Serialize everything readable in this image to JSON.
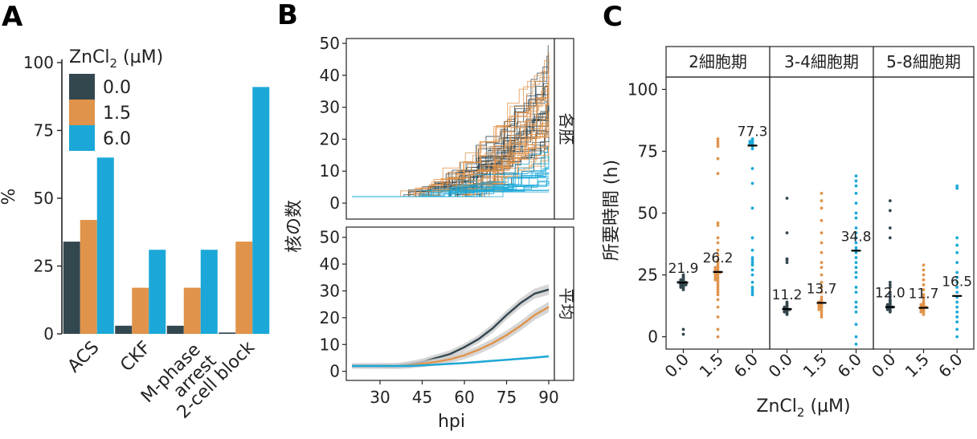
{
  "colors": {
    "c0": "#33474f",
    "c15": "#e0934a",
    "c6": "#1ba8d8",
    "axis": "#222222",
    "band": "#cccccc"
  },
  "legend": {
    "title_prefix": "ZnCl",
    "title_sub": "2",
    "title_suffix": " (µM)",
    "entries": [
      "0.0",
      "1.5",
      "6.0"
    ]
  },
  "chart_data": [
    {
      "panel": "A",
      "type": "bar",
      "title": "",
      "ylabel": "%",
      "xlabel": "",
      "ylim": [
        0,
        100
      ],
      "yticks": [
        0,
        25,
        50,
        75,
        100
      ],
      "categories": [
        "ACS",
        "CKF",
        "M-phase arrest",
        "2-cell block"
      ],
      "category_lines": [
        [
          "ACS"
        ],
        [
          "CKF"
        ],
        [
          "M-phase",
          "arrest"
        ],
        [
          "2-cell block"
        ]
      ],
      "series": [
        {
          "name": "0.0",
          "values": [
            34,
            3,
            3,
            0.5
          ]
        },
        {
          "name": "1.5",
          "values": [
            42,
            17,
            17,
            34
          ]
        },
        {
          "name": "6.0",
          "values": [
            65,
            31,
            31,
            91
          ]
        }
      ]
    },
    {
      "panel": "B",
      "type": "line",
      "xlabel": "hpi",
      "ylabel": "核の数",
      "xlim": [
        18,
        92
      ],
      "xticks": [
        30,
        45,
        60,
        75,
        90
      ],
      "facets": [
        {
          "strip": "各胚",
          "ylim": [
            -3,
            50
          ],
          "yticks": [
            0,
            10,
            20,
            30,
            40,
            50
          ],
          "kind": "individual embryo traces"
        },
        {
          "strip": "平均",
          "ylim": [
            -1,
            52
          ],
          "yticks": [
            0,
            10,
            20,
            30,
            40,
            50
          ],
          "kind": "mean with ribbon"
        }
      ],
      "mean_series": [
        {
          "name": "0.0",
          "x": [
            20,
            36,
            40,
            45,
            50,
            55,
            60,
            65,
            70,
            75,
            80,
            85,
            90
          ],
          "y": [
            2,
            2,
            2.5,
            3.5,
            5,
            6.5,
            9,
            12,
            16,
            21,
            25.5,
            29,
            30.5
          ]
        },
        {
          "name": "1.5",
          "x": [
            20,
            36,
            40,
            45,
            50,
            55,
            60,
            65,
            70,
            75,
            80,
            85,
            90
          ],
          "y": [
            2,
            2,
            2.2,
            2.8,
            3.5,
            4.5,
            6,
            8,
            10.5,
            13.5,
            17,
            21,
            24
          ]
        },
        {
          "name": "6.0",
          "x": [
            20,
            36,
            40,
            45,
            50,
            55,
            60,
            65,
            70,
            75,
            80,
            85,
            90
          ],
          "y": [
            2,
            2,
            2,
            2.2,
            2.5,
            2.8,
            3.1,
            3.5,
            3.9,
            4.3,
            4.7,
            5.1,
            5.6
          ]
        }
      ]
    },
    {
      "panel": "C",
      "type": "scatter",
      "xlabel": "ZnCl2 (µM)",
      "ylabel": "所要時間 (h)",
      "ylim": [
        -5,
        105
      ],
      "yticks": [
        0,
        25,
        50,
        75,
        100
      ],
      "categories": [
        "0.0",
        "1.5",
        "6.0"
      ],
      "facets": [
        {
          "strip": "2細胞期",
          "medians": [
            21.9,
            26.2,
            77.3
          ],
          "median_labels": [
            "21.9",
            "26.2",
            "77.3"
          ],
          "points": [
            [
              19,
              19.5,
              20,
              20,
              20.5,
              20.5,
              21,
              21,
              21,
              21.5,
              21.5,
              21.5,
              22,
              22,
              22,
              22,
              22.5,
              22.5,
              23,
              23,
              23.5,
              24,
              24.5,
              25,
              1,
              3
            ],
            [
              0,
              3,
              8,
              12,
              15,
              17,
              18,
              19,
              20,
              21,
              22,
              23,
              23,
              24,
              24,
              25,
              25,
              26,
              26,
              26,
              27,
              27,
              28,
              28,
              29,
              30,
              31,
              33,
              35,
              38,
              40,
              45,
              46,
              66,
              72,
              77,
              78,
              79,
              80
            ],
            [
              17,
              18,
              19,
              20,
              22,
              25,
              27,
              29,
              30,
              31,
              32,
              35,
              40,
              52,
              62,
              68,
              76,
              77,
              77.5,
              78,
              78,
              78.5,
              79,
              79,
              79.5,
              80
            ]
          ]
        },
        {
          "strip": "3-4細胞期",
          "medians": [
            11.2,
            13.7,
            34.8
          ],
          "median_labels": [
            "11.2",
            "13.7",
            "34.8"
          ],
          "points": [
            [
              9,
              9.5,
              10,
              10,
              10.5,
              10.5,
              11,
              11,
              11,
              11.5,
              11.5,
              12,
              12,
              12.5,
              13,
              13.5,
              14,
              30,
              31,
              31.5,
              42,
              56
            ],
            [
              8,
              9,
              10,
              11,
              11,
              12,
              12,
              12.5,
              13,
              13,
              13.5,
              14,
              14,
              14.5,
              15,
              16,
              18,
              20,
              22,
              25,
              28,
              30,
              34,
              38,
              42,
              47,
              52,
              55,
              58
            ],
            [
              -3,
              0,
              5,
              10,
              12,
              14,
              18,
              20,
              24,
              26,
              28,
              30,
              32,
              34,
              35,
              36,
              38,
              40,
              42,
              44,
              48,
              50,
              54,
              58,
              61,
              63,
              65
            ]
          ]
        },
        {
          "strip": "5-8細胞期",
          "medians": [
            12.0,
            11.7,
            16.5
          ],
          "median_labels": [
            "12.0",
            "11.7",
            "16.5"
          ],
          "points": [
            [
              10,
              10.5,
              11,
              11,
              11.5,
              11.5,
              12,
              12,
              12,
              12.5,
              12.5,
              13,
              13,
              13.5,
              14,
              14.5,
              15,
              16,
              17,
              18,
              20,
              21,
              22,
              40,
              44,
              51,
              55
            ],
            [
              9,
              10,
              10,
              10.5,
              11,
              11,
              11.5,
              11.5,
              12,
              12,
              12,
              12.5,
              13,
              13,
              13.5,
              14,
              15,
              16,
              17,
              19,
              21,
              23,
              25,
              27,
              29
            ],
            [
              0,
              3,
              6,
              8,
              10,
              12,
              14,
              16,
              18,
              20,
              22,
              24,
              26,
              30,
              34,
              37,
              40,
              60,
              61
            ]
          ]
        }
      ]
    }
  ]
}
